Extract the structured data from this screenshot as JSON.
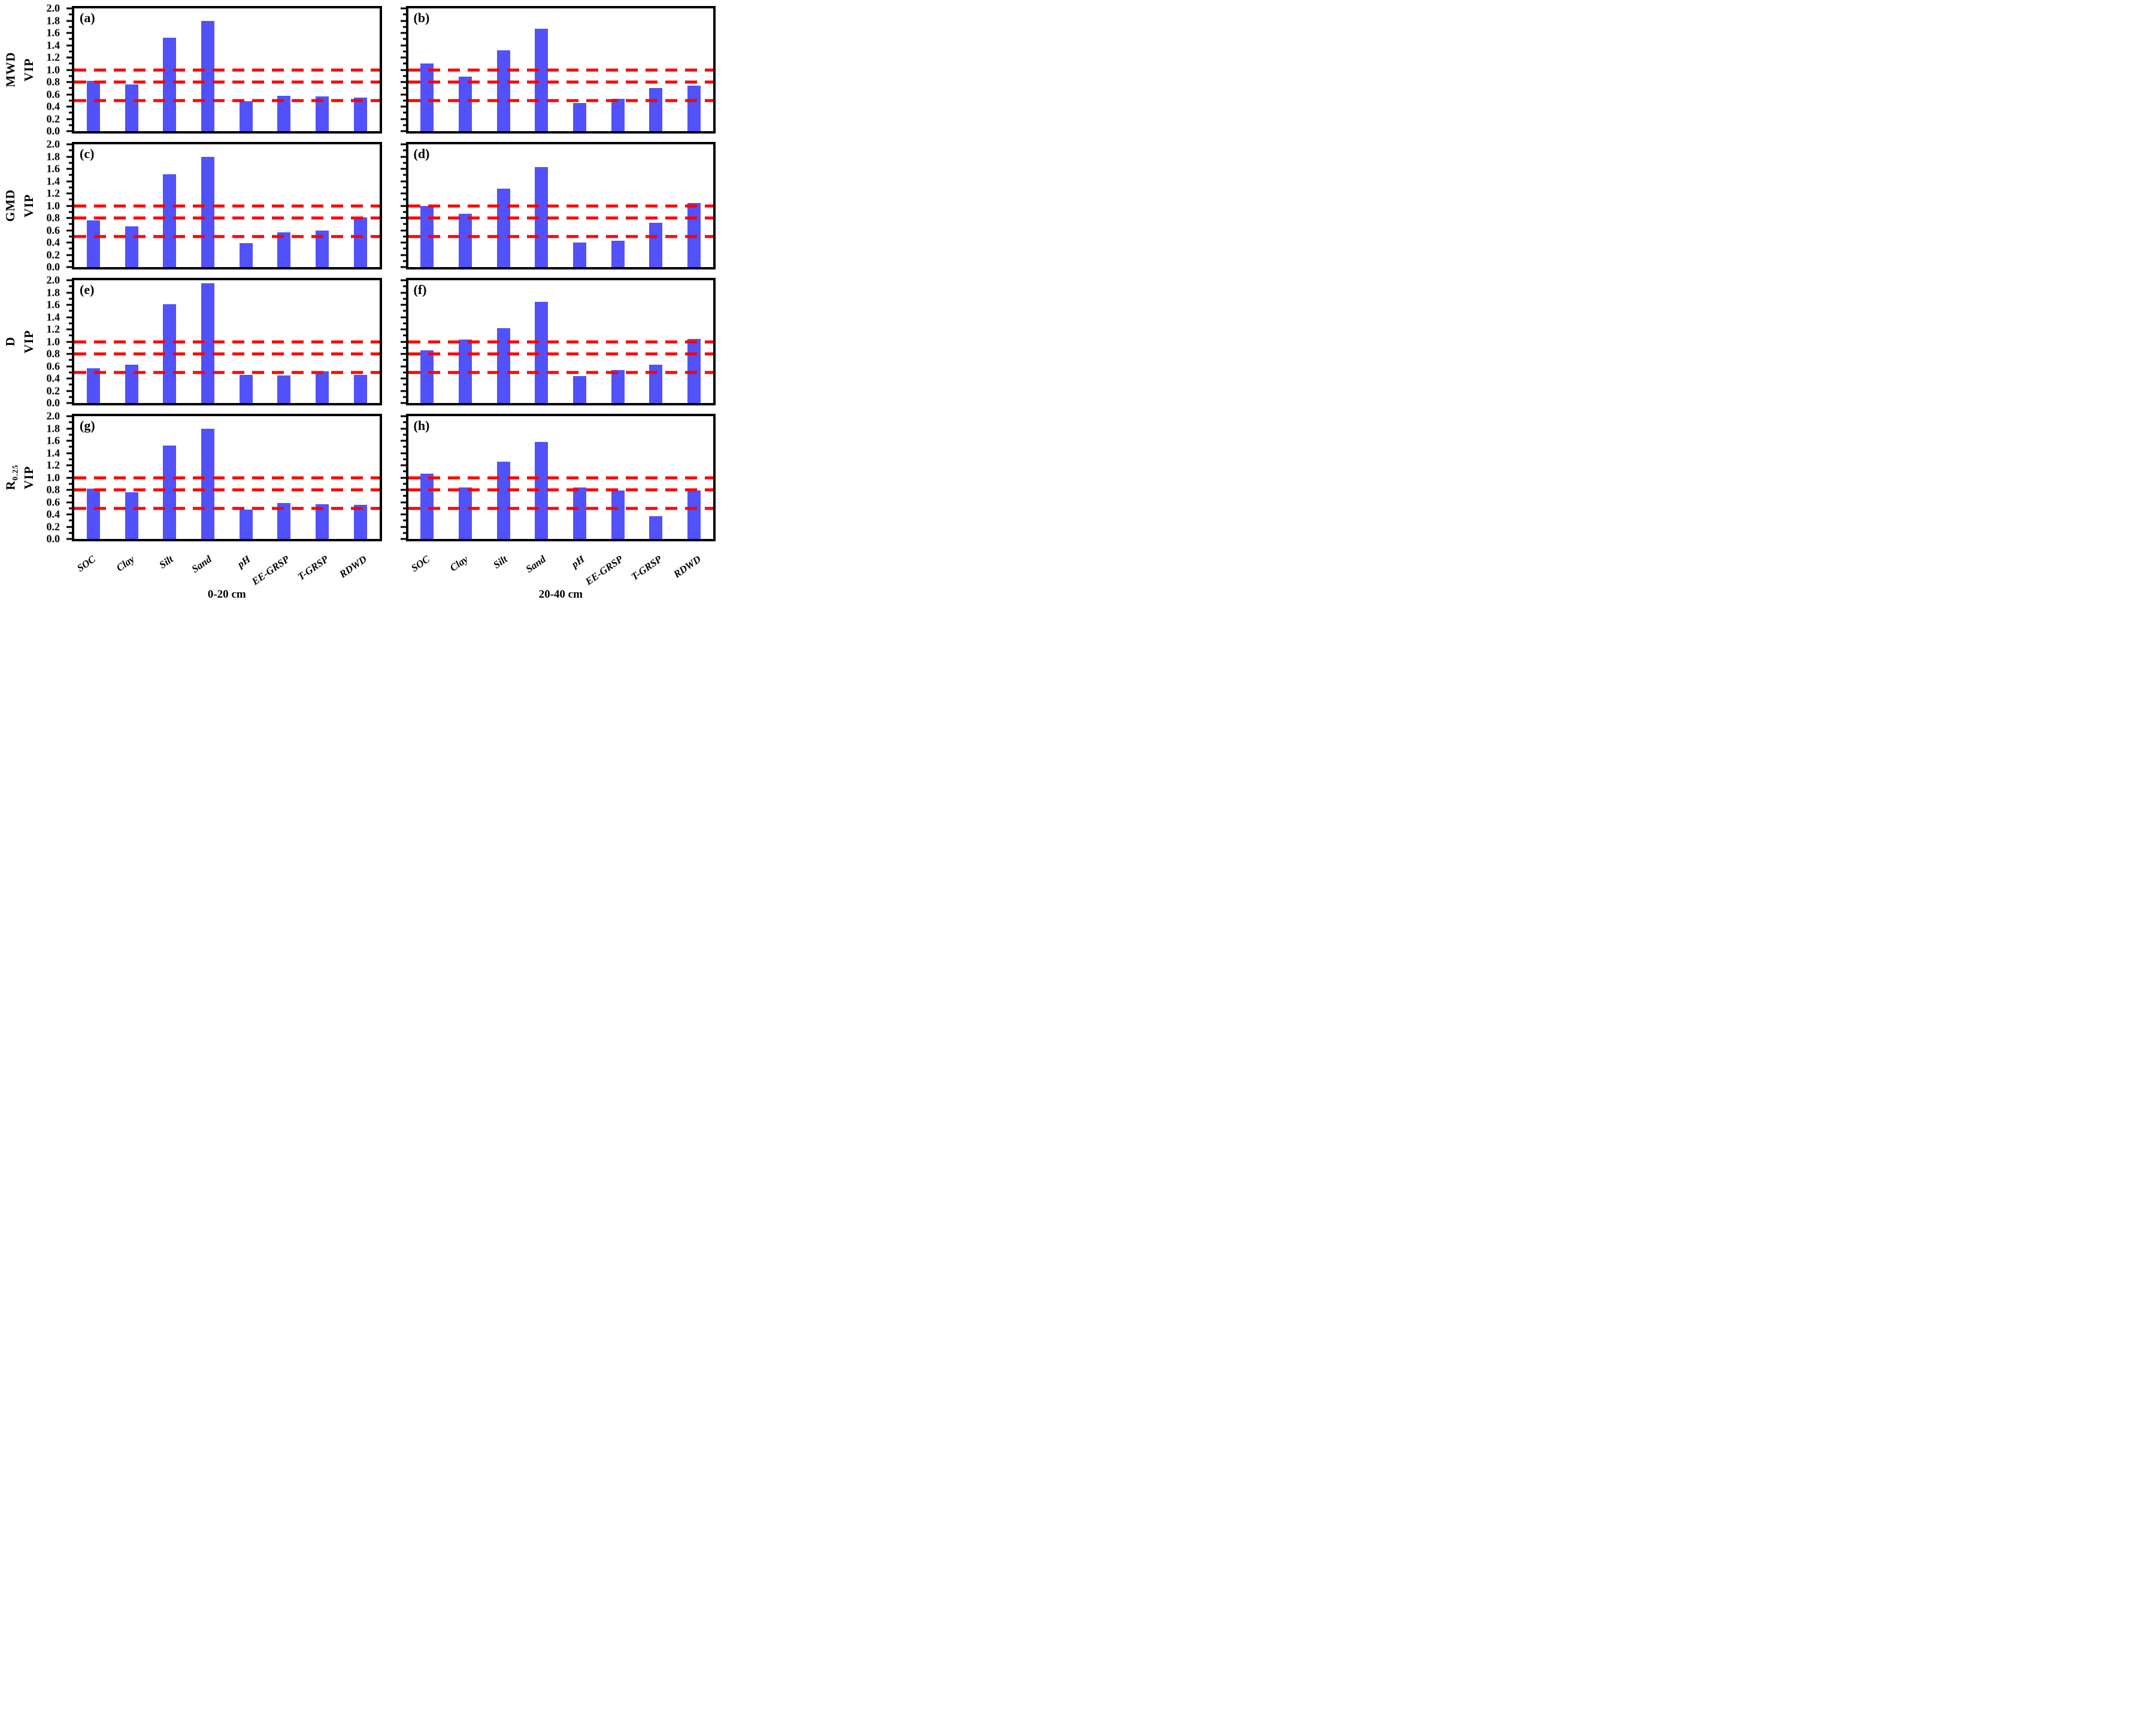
{
  "figure": {
    "background_color": "#ffffff",
    "bar_color": "#5252fa",
    "ref_line_color": "#ff0000",
    "axis_color": "#000000",
    "categories": [
      "SOC",
      "Clay",
      "Silt",
      "Sand",
      "pH",
      "EE-GRSP",
      "T-GRSP",
      "RDWD"
    ],
    "column_titles": [
      "0-20 cm",
      "20-40 cm"
    ],
    "y_axis": {
      "min": 0.0,
      "max": 2.0,
      "major_step": 0.2,
      "minor_step": 0.1,
      "tick_labels": [
        "0.0",
        "0.2",
        "0.4",
        "0.6",
        "0.8",
        "1.0",
        "1.2",
        "1.4",
        "1.6",
        "1.8",
        "2.0"
      ]
    },
    "ref_lines": [
      1.0,
      0.8,
      0.5
    ],
    "rows": [
      {
        "metric": "MWD",
        "metric_sub": "",
        "axis_label": "VIP"
      },
      {
        "metric": "GMD",
        "metric_sub": "",
        "axis_label": "VIP"
      },
      {
        "metric": "D",
        "metric_sub": "",
        "axis_label": "VIP"
      },
      {
        "metric": "R",
        "metric_sub": "0.25",
        "axis_label": "VIP"
      }
    ]
  },
  "chart_data": [
    {
      "type": "bar",
      "letter": "(a)",
      "metric": "MWD",
      "depth": "0-20 cm",
      "categories": [
        "SOC",
        "Clay",
        "Silt",
        "Sand",
        "pH",
        "EE-GRSP",
        "T-GRSP",
        "RDWD"
      ],
      "values": [
        0.82,
        0.76,
        1.52,
        1.8,
        0.49,
        0.58,
        0.57,
        0.55
      ],
      "ylabel": "MWD VIP",
      "ylim": [
        0.0,
        2.0
      ],
      "ref_lines": [
        1.0,
        0.8,
        0.5
      ],
      "grid": false,
      "legend": null
    },
    {
      "type": "bar",
      "letter": "(b)",
      "metric": "MWD",
      "depth": "20-40 cm",
      "categories": [
        "SOC",
        "Clay",
        "Silt",
        "Sand",
        "pH",
        "EE-GRSP",
        "T-GRSP",
        "RDWD"
      ],
      "values": [
        1.1,
        0.89,
        1.32,
        1.67,
        0.46,
        0.53,
        0.7,
        0.74
      ],
      "ylabel": "MWD VIP",
      "ylim": [
        0.0,
        2.0
      ],
      "ref_lines": [
        1.0,
        0.8,
        0.5
      ],
      "grid": false,
      "legend": null
    },
    {
      "type": "bar",
      "letter": "(c)",
      "metric": "GMD",
      "depth": "0-20 cm",
      "categories": [
        "SOC",
        "Clay",
        "Silt",
        "Sand",
        "pH",
        "EE-GRSP",
        "T-GRSP",
        "RDWD"
      ],
      "values": [
        0.76,
        0.66,
        1.51,
        1.8,
        0.39,
        0.57,
        0.6,
        0.81
      ],
      "ylabel": "GMD VIP",
      "ylim": [
        0.0,
        2.0
      ],
      "ref_lines": [
        1.0,
        0.8,
        0.5
      ],
      "grid": false,
      "legend": null
    },
    {
      "type": "bar",
      "letter": "(d)",
      "metric": "GMD",
      "depth": "20-40 cm",
      "categories": [
        "SOC",
        "Clay",
        "Silt",
        "Sand",
        "pH",
        "EE-GRSP",
        "T-GRSP",
        "RDWD"
      ],
      "values": [
        1.0,
        0.87,
        1.28,
        1.63,
        0.4,
        0.43,
        0.72,
        1.04
      ],
      "ylabel": "GMD VIP",
      "ylim": [
        0.0,
        2.0
      ],
      "ref_lines": [
        1.0,
        0.8,
        0.5
      ],
      "grid": false,
      "legend": null
    },
    {
      "type": "bar",
      "letter": "(e)",
      "metric": "D",
      "depth": "0-20 cm",
      "categories": [
        "SOC",
        "Clay",
        "Silt",
        "Sand",
        "pH",
        "EE-GRSP",
        "T-GRSP",
        "RDWD"
      ],
      "values": [
        0.57,
        0.62,
        1.61,
        1.95,
        0.46,
        0.45,
        0.52,
        0.46
      ],
      "ylabel": "D VIP",
      "ylim": [
        0.0,
        2.0
      ],
      "ref_lines": [
        1.0,
        0.8,
        0.5
      ],
      "grid": false,
      "legend": null
    },
    {
      "type": "bar",
      "letter": "(f)",
      "metric": "D",
      "depth": "20-40 cm",
      "categories": [
        "SOC",
        "Clay",
        "Silt",
        "Sand",
        "pH",
        "EE-GRSP",
        "T-GRSP",
        "RDWD"
      ],
      "values": [
        0.86,
        1.03,
        1.22,
        1.65,
        0.44,
        0.54,
        0.62,
        1.04
      ],
      "ylabel": "D VIP",
      "ylim": [
        0.0,
        2.0
      ],
      "ref_lines": [
        1.0,
        0.8,
        0.5
      ],
      "grid": false,
      "legend": null
    },
    {
      "type": "bar",
      "letter": "(g)",
      "metric": "R0.25",
      "depth": "0-20 cm",
      "categories": [
        "SOC",
        "Clay",
        "Silt",
        "Sand",
        "pH",
        "EE-GRSP",
        "T-GRSP",
        "RDWD"
      ],
      "values": [
        0.82,
        0.76,
        1.52,
        1.8,
        0.48,
        0.59,
        0.57,
        0.56
      ],
      "ylabel": "R0.25 VIP",
      "ylim": [
        0.0,
        2.0
      ],
      "ref_lines": [
        1.0,
        0.8,
        0.5
      ],
      "grid": false,
      "legend": null
    },
    {
      "type": "bar",
      "letter": "(h)",
      "metric": "R0.25",
      "depth": "20-40 cm",
      "categories": [
        "SOC",
        "Clay",
        "Silt",
        "Sand",
        "pH",
        "EE-GRSP",
        "T-GRSP",
        "RDWD"
      ],
      "values": [
        1.06,
        0.84,
        1.26,
        1.58,
        0.84,
        0.79,
        0.37,
        0.79
      ],
      "ylabel": "R0.25 VIP",
      "ylim": [
        0.0,
        2.0
      ],
      "ref_lines": [
        1.0,
        0.8,
        0.5
      ],
      "grid": false,
      "legend": null
    }
  ]
}
